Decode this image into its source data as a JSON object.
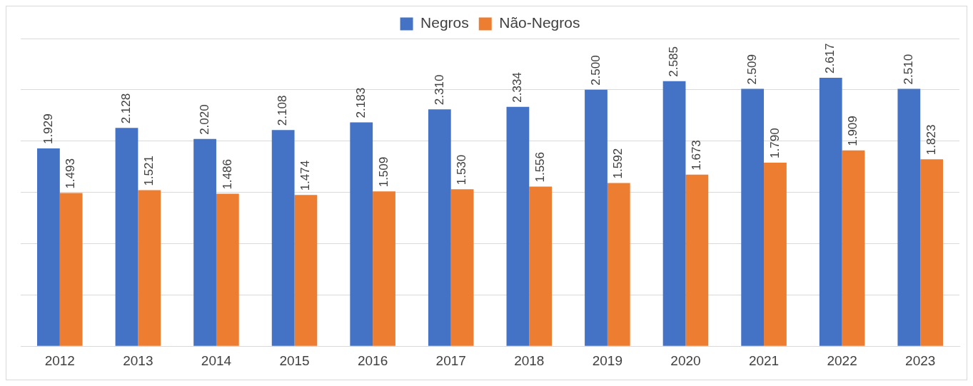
{
  "chart_data": {
    "type": "bar",
    "categories": [
      "2012",
      "2013",
      "2014",
      "2015",
      "2016",
      "2017",
      "2018",
      "2019",
      "2020",
      "2021",
      "2022",
      "2023"
    ],
    "series": [
      {
        "name": "Negros",
        "color": "#4472c4",
        "values": [
          1929,
          2128,
          2020,
          2108,
          2183,
          2310,
          2334,
          2500,
          2585,
          2509,
          2617,
          2510
        ],
        "value_labels": [
          "1.929",
          "2.128",
          "2.020",
          "2.108",
          "2.183",
          "2.310",
          "2.334",
          "2.500",
          "2.585",
          "2.509",
          "2.617",
          "2.510"
        ]
      },
      {
        "name": "Não-Negros",
        "color": "#ed7d31",
        "values": [
          1493,
          1521,
          1486,
          1474,
          1509,
          1530,
          1556,
          1592,
          1673,
          1790,
          1909,
          1823
        ],
        "value_labels": [
          "1.493",
          "1.521",
          "1.486",
          "1.474",
          "1.509",
          "1.530",
          "1.556",
          "1.592",
          "1.673",
          "1.790",
          "1.909",
          "1.823"
        ]
      }
    ],
    "ylim": [
      0,
      3000
    ],
    "yticks": [
      {
        "value": 0,
        "label": null
      },
      {
        "value": 500,
        "label": null
      },
      {
        "value": 1000,
        "label": null
      },
      {
        "value": 1500,
        "label": null
      },
      {
        "value": 2000,
        "label": null
      },
      {
        "value": 2500,
        "label": null
      },
      {
        "value": 3000,
        "label": null
      }
    ],
    "grid": "y",
    "legend": "top",
    "tick_labels": "x"
  }
}
